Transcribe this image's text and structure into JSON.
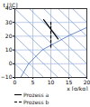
{
  "chart_data": {
    "type": "line",
    "x_label": "x [g/kg]",
    "y_label": "t [°C]",
    "xlim": [
      0,
      20
    ],
    "xticks": [
      0,
      5,
      10,
      15,
      20
    ],
    "ylim": [
      -10,
      40
    ],
    "yticks": [
      -10,
      0,
      10,
      20,
      30,
      40
    ],
    "grid": true,
    "legend": "bottom",
    "isolines": [
      {
        "color": "#7a9ad4",
        "x": [
          0,
          20
        ],
        "values": [
          0,
          -50
        ]
      },
      {
        "color": "#7a9ad4",
        "x": [
          0,
          20
        ],
        "values": [
          10,
          -40
        ]
      },
      {
        "color": "#7a9ad4",
        "x": [
          0,
          20
        ],
        "values": [
          20,
          -30
        ]
      },
      {
        "color": "#7a9ad4",
        "x": [
          0,
          20
        ],
        "values": [
          30,
          -20
        ]
      },
      {
        "color": "#7a9ad4",
        "x": [
          0,
          20
        ],
        "values": [
          40,
          -10
        ]
      },
      {
        "color": "#7a9ad4",
        "x": [
          0,
          20
        ],
        "values": [
          50,
          0
        ]
      },
      {
        "color": "#7a9ad4",
        "x": [
          0,
          20
        ],
        "values": [
          60,
          10
        ]
      },
      {
        "color": "#7a9ad4",
        "x": [
          0,
          20
        ],
        "values": [
          70,
          20
        ]
      },
      {
        "color": "#7a9ad4",
        "x": [
          0,
          20
        ],
        "values": [
          80,
          30
        ]
      },
      {
        "color": "#7a9ad4",
        "x": [
          0,
          20
        ],
        "values": [
          90,
          40
        ]
      },
      {
        "color": "#2f5fb3",
        "x": [
          1.6,
          3.8,
          7.6,
          14.7,
          20
        ],
        "values": [
          -10,
          0,
          10,
          20,
          26.3
        ]
      }
    ],
    "series": [
      {
        "name": "Prozess a",
        "color": "#000000",
        "line_style": "solid",
        "x": [
          8,
          12
        ],
        "values": [
          32,
          18
        ]
      },
      {
        "name": "Prozess b",
        "color": "#000000",
        "line_style": "dashed",
        "x": [
          10,
          10
        ],
        "values": [
          12,
          30
        ]
      }
    ]
  }
}
